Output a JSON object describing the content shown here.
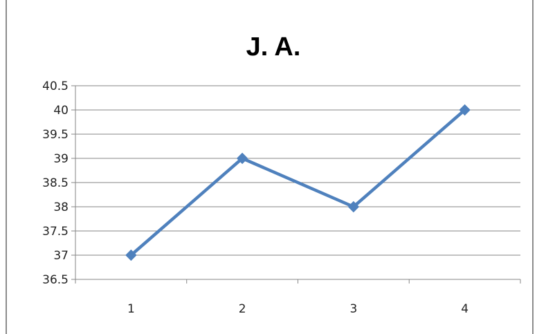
{
  "chart_data": {
    "type": "line",
    "title": "J. A.",
    "xlabel": "",
    "ylabel": "",
    "categories": [
      "1",
      "2",
      "3",
      "4"
    ],
    "series": [
      {
        "values": [
          37,
          39,
          38,
          40
        ]
      }
    ],
    "ylim": [
      36.5,
      40.5
    ],
    "yticks": [
      "36.5",
      "37",
      "37.5",
      "38",
      "38.5",
      "39",
      "39.5",
      "40",
      "40.5"
    ],
    "grid": "horizontal",
    "legend": "none",
    "line_color": "#4f81bd",
    "grid_color": "#868686"
  }
}
